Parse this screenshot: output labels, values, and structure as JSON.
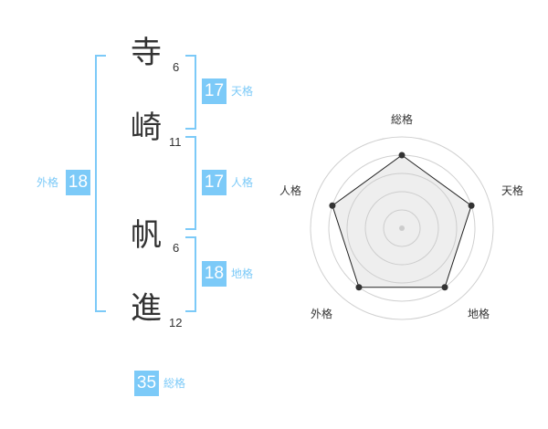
{
  "name": [
    {
      "char": "寺",
      "strokes": "6"
    },
    {
      "char": "崎",
      "strokes": "11"
    },
    {
      "char": "帆",
      "strokes": "6"
    },
    {
      "char": "進",
      "strokes": "12"
    }
  ],
  "fortunes": {
    "tenkaku": {
      "label": "天格",
      "value": "17"
    },
    "jinkaku": {
      "label": "人格",
      "value": "17"
    },
    "chikaku": {
      "label": "地格",
      "value": "18"
    },
    "gaikaku": {
      "label": "外格",
      "value": "18"
    },
    "soukaku": {
      "label": "総格",
      "value": "35"
    }
  },
  "colors": {
    "accent": "#7ccaf8",
    "text": "#333333"
  },
  "chart_data": {
    "type": "radar",
    "axes": [
      "総格",
      "天格",
      "地格",
      "外格",
      "人格"
    ],
    "values": [
      4,
      4,
      4,
      4,
      4
    ],
    "range": [
      0,
      5
    ]
  }
}
